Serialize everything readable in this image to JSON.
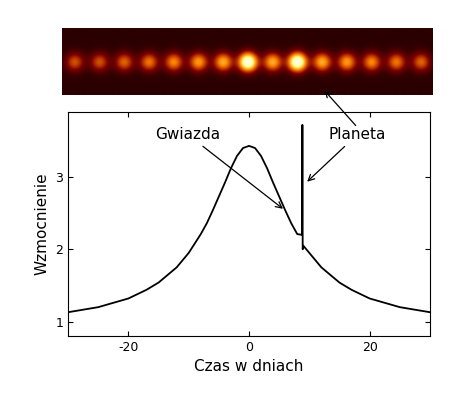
{
  "chart_data": {
    "type": "line",
    "x_label": "Czas w dniach",
    "y_label": "Wzmocnienie",
    "annotations": [
      "Gwiazda",
      "Planeta"
    ],
    "x": [
      -30,
      -25,
      -20,
      -17,
      -15,
      -12,
      -10,
      -8,
      -7,
      -6,
      -5,
      -4,
      -3,
      -2,
      -1,
      0,
      1,
      2,
      3,
      4,
      5,
      6,
      7,
      8,
      8.8,
      8.85,
      8.9,
      9.0,
      10,
      12,
      15,
      17,
      20,
      25,
      30
    ],
    "values": [
      1.13,
      1.2,
      1.32,
      1.44,
      1.54,
      1.75,
      1.95,
      2.21,
      2.36,
      2.54,
      2.73,
      2.92,
      3.12,
      3.29,
      3.4,
      3.43,
      3.4,
      3.29,
      3.12,
      2.92,
      2.73,
      2.54,
      2.36,
      2.21,
      2.2,
      3.72,
      2.0,
      2.05,
      1.95,
      1.75,
      1.54,
      1.44,
      1.32,
      1.2,
      1.13
    ],
    "color": "#000000",
    "xlim": [
      -30,
      30
    ],
    "xticks": [
      -20,
      0,
      20
    ],
    "ylim": [
      0.8,
      3.9
    ],
    "yticks": [
      1,
      2,
      3
    ],
    "grid": false
  }
}
